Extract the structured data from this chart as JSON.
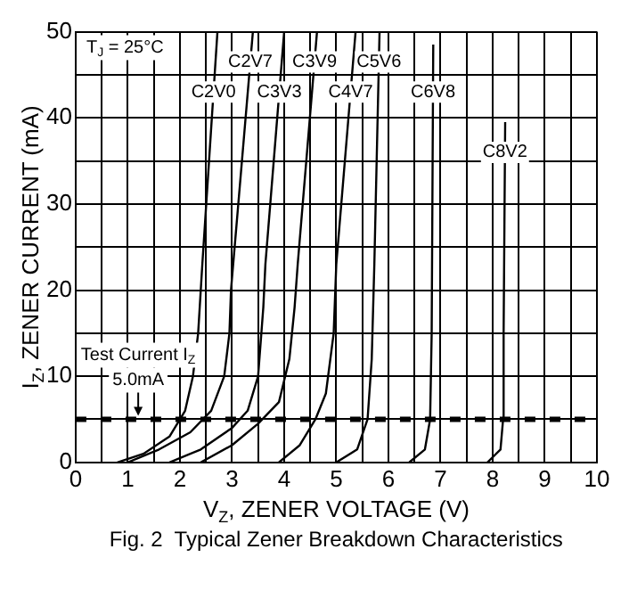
{
  "chart_data": {
    "type": "line",
    "title": "Fig. 2  Typical Zener Breakdown Characteristics",
    "xlabel": "V$_{Z}$, ZENER VOLTAGE (V)",
    "ylabel": "I$_{Z}$, ZENER CURRENT (mA)",
    "xlim": [
      0,
      10
    ],
    "ylim": [
      0,
      50
    ],
    "xticks": [
      0,
      {
        "value": 0.5,
        "label": null
      },
      1,
      {
        "value": 1.5,
        "label": null
      },
      2,
      {
        "value": 2.5,
        "label": null
      },
      3,
      {
        "value": 3.5,
        "label": null
      },
      4,
      {
        "value": 4.5,
        "label": null
      },
      5,
      {
        "value": 5.5,
        "label": null
      },
      6,
      {
        "value": 6.5,
        "label": null
      },
      7,
      {
        "value": 7.5,
        "label": null
      },
      8,
      {
        "value": 8.5,
        "label": null
      },
      9,
      {
        "value": 9.5,
        "label": null
      },
      10
    ],
    "yticks": [
      0,
      {
        "value": 5,
        "label": null
      },
      10,
      {
        "value": 15,
        "label": null
      },
      20,
      {
        "value": 25,
        "label": null
      },
      30,
      {
        "value": 35,
        "label": null
      },
      40,
      {
        "value": 45,
        "label": null
      },
      50
    ],
    "grid": true,
    "legend": false,
    "marker": "none",
    "line_style": "solid",
    "series": [
      {
        "name": "C2V0",
        "color": "#000000",
        "x": [
          0.8,
          1.3,
          1.8,
          2.1,
          2.25,
          2.35,
          2.43,
          2.72
        ],
        "values": [
          0,
          1,
          3,
          6,
          10,
          15,
          23,
          50
        ]
      },
      {
        "name": "C2V7",
        "color": "#000000",
        "x": [
          1.0,
          1.6,
          2.2,
          2.6,
          2.85,
          2.95,
          2.98,
          3.4
        ],
        "values": [
          0,
          1.5,
          3.5,
          6,
          10,
          15,
          20,
          50
        ]
      },
      {
        "name": "C3V3",
        "color": "#000000",
        "x": [
          1.8,
          2.4,
          3.0,
          3.3,
          3.5,
          3.6,
          3.64,
          4.0
        ],
        "values": [
          0,
          1.5,
          4,
          6,
          10,
          18,
          23,
          50
        ]
      },
      {
        "name": "C3V9",
        "color": "#000000",
        "x": [
          2.4,
          3.0,
          3.5,
          3.9,
          4.1,
          4.2,
          4.26,
          4.63
        ],
        "values": [
          0,
          2,
          4.5,
          7,
          12,
          18,
          23,
          50
        ]
      },
      {
        "name": "C4V7",
        "color": "#000000",
        "x": [
          3.9,
          4.3,
          4.6,
          4.8,
          4.95,
          5.0,
          5.37
        ],
        "values": [
          0,
          2,
          5,
          8,
          15,
          23,
          50
        ]
      },
      {
        "name": "C5V6",
        "color": "#000000",
        "x": [
          5.0,
          5.4,
          5.6,
          5.68,
          5.73,
          5.83
        ],
        "values": [
          0,
          1.5,
          5,
          12,
          23,
          50
        ]
      },
      {
        "name": "C6V8",
        "color": "#000000",
        "x": [
          6.4,
          6.7,
          6.8,
          6.83,
          6.86
        ],
        "values": [
          0,
          1.5,
          5,
          15,
          48.5
        ]
      },
      {
        "name": "C8V2",
        "color": "#000000",
        "x": [
          7.9,
          8.15,
          8.2,
          8.21,
          8.24
        ],
        "values": [
          0,
          1.5,
          5,
          15,
          39.5
        ]
      }
    ],
    "ref_lines": [
      {
        "axis": "y",
        "value": 5,
        "line_style": "dashed",
        "color": "#000000"
      }
    ],
    "annotations": [
      "T$_{J}$ = 25°C",
      {
        "text": "Test Current I$_{Z}$",
        "x": 1.2,
        "y": 5
      },
      {
        "text": "5.0mA",
        "x": 1.2,
        "y": 5
      }
    ]
  }
}
